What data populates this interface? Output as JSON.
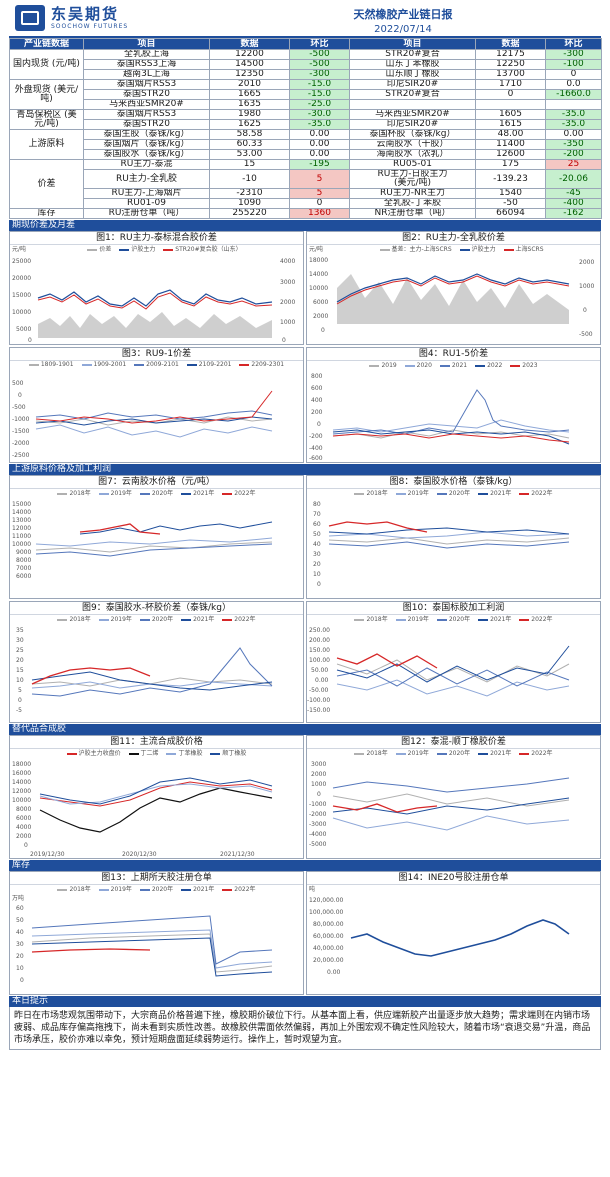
{
  "header": {
    "logo_cn": "东吴期货",
    "logo_en": "SOOCHOW FUTURES",
    "title": "天然橡胶产业链日报",
    "date": "2022/07/14"
  },
  "table": {
    "headers": [
      "产业链数据",
      "项目",
      "数据",
      "环比",
      "项目",
      "数据",
      "环比"
    ],
    "groups": [
      {
        "cat": "国内现货\n(元/吨)",
        "rows": [
          [
            "全乳胶上海",
            "12200",
            "-500",
            "STR20#复合",
            "12175",
            "-300"
          ],
          [
            "泰国RSS3上海",
            "14500",
            "-500",
            "山东丁苯橡胶",
            "12250",
            "-100"
          ],
          [
            "越南3L上海",
            "12350",
            "-300",
            "山东顺丁橡胶",
            "13700",
            "0"
          ]
        ]
      },
      {
        "cat": "外盘现货\n(美元/吨)",
        "rows": [
          [
            "泰国烟片RSS3",
            "2010",
            "-15.0",
            "印尼SIR20#",
            "1710",
            "0.0"
          ],
          [
            "泰国STR20",
            "1665",
            "-15.0",
            "STR20#复合",
            "0",
            "-1660.0"
          ],
          [
            "马来西亚SMR20#",
            "1635",
            "-25.0",
            "",
            "",
            ""
          ]
        ]
      },
      {
        "cat": "青岛保税区\n(美元/吨)",
        "rows": [
          [
            "泰国烟片RSS3",
            "1980",
            "-30.0",
            "马来西亚SMR20#",
            "1605",
            "-35.0"
          ],
          [
            "泰国STR20",
            "1625",
            "-35.0",
            "印尼SIR20#",
            "1615",
            "-35.0"
          ]
        ]
      },
      {
        "cat": "上游原料",
        "rows": [
          [
            "泰国生胶（泰铢/kg）",
            "58.58",
            "0.00",
            "泰国杯胶（泰铢/kg）",
            "48.00",
            "0.00"
          ],
          [
            "泰国烟片（泰铢/kg）",
            "60.33",
            "0.00",
            "云南胶水（干胶）",
            "11400",
            "-350"
          ],
          [
            "泰国胶水（泰铢/kg）",
            "53.00",
            "0.00",
            "海南胶水（浓乳）",
            "12600",
            "-200"
          ]
        ]
      },
      {
        "cat": "价差",
        "rows": [
          [
            "RU主力-泰混",
            "15",
            "-195",
            "RU05-01",
            "175",
            "25"
          ],
          [
            "RU主力-全乳胶",
            "-10",
            "5",
            "RU主力-日胶主力\n(美元/吨)",
            "-139.23",
            "-20.06"
          ],
          [
            "RU主力-上海烟片",
            "-2310",
            "5",
            "RU主力-NR主力",
            "1540",
            "-45"
          ],
          [
            "RU01-09",
            "1090",
            "0",
            "全乳胶-丁苯胶",
            "-50",
            "-400"
          ]
        ]
      },
      {
        "cat": "库存",
        "rows": [
          [
            "RU注册仓单（吨）",
            "255220",
            "1360",
            "NR注册仓单（吨）",
            "66094",
            "-162"
          ]
        ]
      }
    ]
  },
  "sections": {
    "s1": "期现价差及月差",
    "s2": "上游原料价格及加工利润",
    "s3": "替代品合成胶",
    "s4": "库存",
    "s5": "本日提示"
  },
  "charts": {
    "c1": {
      "title": "图1：RU主力-泰标混合胶价差",
      "unit": "元/吨",
      "legend": [
        "价差",
        "沪胶主力",
        "STR20#复合胶（山东）"
      ]
    },
    "c2": {
      "title": "图2：RU主力-全乳胶价差",
      "unit": "元/吨",
      "legend": [
        "基差：主力-上海SCRS",
        "沪胶主力",
        "上海SCRS"
      ]
    },
    "c3": {
      "title": "图3：RU9-1价差",
      "legend": [
        "1809-1901",
        "1909-2001",
        "2009-2101",
        "2109-2201",
        "2209-2301"
      ]
    },
    "c4": {
      "title": "图4：RU1-5价差",
      "legend": [
        "2019",
        "2020",
        "2021",
        "2022",
        "2023"
      ]
    },
    "c7": {
      "title": "图7：云南胶水价格（元/吨）",
      "legend": [
        "2018年",
        "2019年",
        "2020年",
        "2021年",
        "2022年"
      ]
    },
    "c8": {
      "title": "图8：泰国胶水价格（泰铢/kg）",
      "legend": [
        "2018年",
        "2019年",
        "2020年",
        "2021年",
        "2022年"
      ]
    },
    "c9": {
      "title": "图9：泰国胶水-杯胶价差（泰铢/kg）",
      "legend": [
        "2018年",
        "2019年",
        "2020年",
        "2021年",
        "2022年"
      ]
    },
    "c10": {
      "title": "图10：泰国标胶加工利润",
      "legend": [
        "2018年",
        "2019年",
        "2020年",
        "2021年",
        "2022年"
      ]
    },
    "c11": {
      "title": "图11：主流合成胶价格",
      "legend": [
        "沪胶主力收盘价",
        "丁二烯",
        "丁苯橡胶",
        "顺丁橡胶"
      ],
      "xticks": [
        "2019/12/30",
        "2020/12/30",
        "2021/12/30"
      ]
    },
    "c12": {
      "title": "图12：泰混-顺丁橡胶价差",
      "legend": [
        "2018年",
        "2019年",
        "2020年",
        "2021年",
        "2022年"
      ]
    },
    "c13": {
      "title": "图13：上期所天胶注册仓单",
      "unit": "万吨",
      "legend": [
        "2018年",
        "2019年",
        "2020年",
        "2021年",
        "2022年"
      ]
    },
    "c14": {
      "title": "图14：INE20号胶注册仓单",
      "unit": "吨"
    }
  },
  "colors": {
    "navy": "#1f4e9b",
    "red": "#d62728",
    "gray": "#b0b0b0",
    "lightblue": "#8fa8d8",
    "purple": "#a59bd6"
  },
  "footer": "昨日在市场悲观氛围带动下，大宗商品价格普遍下挫，橡胶期价破位下行。从基本面上看，供应端新胶产出量逐步放大趋势；需求端则在内销市场疲弱、成品库存偏高拖拽下，尚未看到实质性改善。故橡胶供需面依然偏弱，再加上外围宏观不确定性风险较大，随着市场“衰退交易”升温，商品市场承压，胶价亦难以幸免，预计短期盘面延续弱势运行。操作上，暂时观望为宜。"
}
